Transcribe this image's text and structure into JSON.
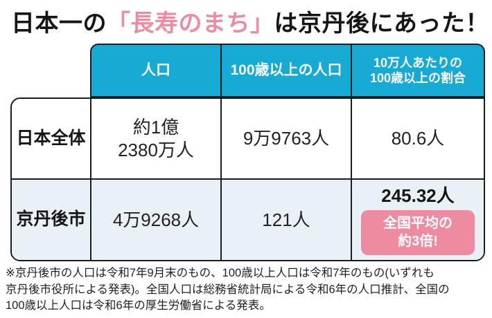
{
  "title": {
    "prefix": "日本一の",
    "highlight": "「長寿のまち」",
    "suffix": "は京丹後にあった！"
  },
  "table": {
    "columns": {
      "population": "人口",
      "centenarians": "100歳以上の人口",
      "ratio_line1": "10万人あたりの",
      "ratio_line2": "100歳以上の割合"
    },
    "rows": {
      "japan": {
        "label": "日本全体",
        "population_line1": "約1億",
        "population_line2": "2380万人",
        "centenarians": "9万9763人",
        "ratio": "80.6人"
      },
      "kyotango": {
        "label": "京丹後市",
        "population": "4万9268人",
        "centenarians": "121人",
        "ratio": "245.32人",
        "badge_line1": "全国平均の",
        "badge_line2": "約3倍!"
      }
    }
  },
  "footnote": {
    "lines": [
      "※京丹後市の人口は令和7年9月末のもの、100歳以上人口は令和7年のもの(いずれも",
      "京丹後市役所による発表)。全国人口は総務省統計局による令和6年の人口推計、全国の",
      "100歳以上人口は令和6年の厚生労働省による発表。"
    ]
  },
  "colors": {
    "header_bg": "#16abd4",
    "accent_pink": "#ef8ba0",
    "alt_row_bg": "#e9f1f6",
    "border": "#1c1c1c"
  },
  "chart_data": {
    "type": "table",
    "title": "日本一の「長寿のまち」は京丹後にあった！",
    "columns": [
      "",
      "人口",
      "100歳以上の人口",
      "10万人あたりの100歳以上の割合"
    ],
    "rows": [
      [
        "日本全体",
        "約1億2380万人",
        "9万9763人",
        "80.6人"
      ],
      [
        "京丹後市",
        "4万9268人",
        "121人",
        "245.32人（全国平均の約3倍!）"
      ]
    ],
    "annotations": [
      "全国平均の約3倍!"
    ],
    "note": "※京丹後市の人口は令和7年9月末のもの、100歳以上人口は令和7年のもの(いずれも京丹後市役所による発表)。全国人口は総務省統計局による令和6年の人口推計、全国の100歳以上人口は令和6年の厚生労働省による発表。"
  }
}
